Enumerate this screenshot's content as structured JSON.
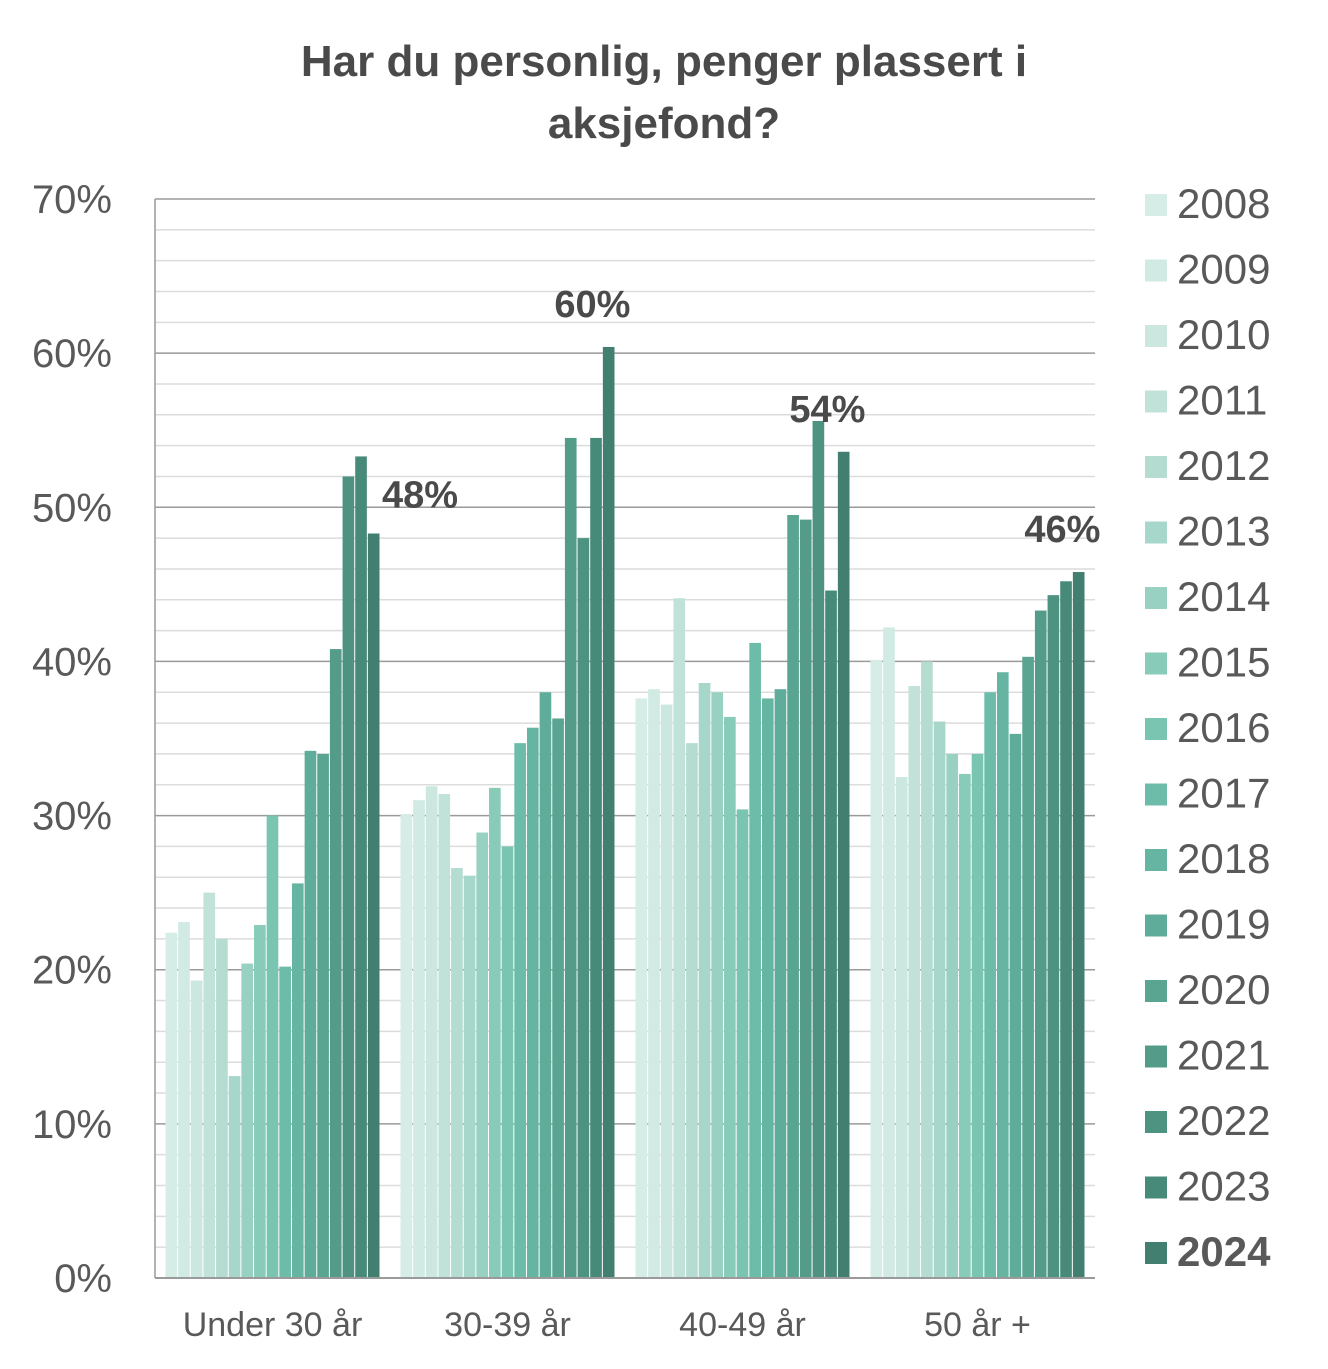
{
  "chart_data": {
    "type": "bar",
    "title_line1": "Har du personlig, penger plassert i",
    "title_line2": "aksjefond?",
    "xlabel": "",
    "ylabel": "",
    "ylim": [
      0,
      70
    ],
    "y_ticks": [
      0,
      10,
      20,
      30,
      40,
      50,
      60,
      70
    ],
    "y_tick_labels": [
      "0%",
      "10%",
      "20%",
      "30%",
      "40%",
      "50%",
      "60%",
      "70%"
    ],
    "grid": true,
    "legend_position": "right",
    "categories": [
      "Under 30 år",
      "30-39 år",
      "40-49 år",
      "50 år +"
    ],
    "series": [
      {
        "name": "2008",
        "color": "#d6ece6",
        "values": [
          22.4,
          30.1,
          37.6,
          40.1
        ]
      },
      {
        "name": "2009",
        "color": "#d1eae3",
        "values": [
          23.1,
          31.0,
          38.2,
          42.2
        ]
      },
      {
        "name": "2010",
        "color": "#cce7e0",
        "values": [
          19.3,
          31.9,
          37.2,
          32.5
        ]
      },
      {
        "name": "2011",
        "color": "#c0e2d9",
        "values": [
          25.0,
          31.4,
          44.1,
          38.4
        ]
      },
      {
        "name": "2012",
        "color": "#b4dcd1",
        "values": [
          22.0,
          26.6,
          34.7,
          40.0
        ]
      },
      {
        "name": "2013",
        "color": "#a6d7ca",
        "values": [
          13.1,
          26.1,
          38.6,
          36.1
        ]
      },
      {
        "name": "2014",
        "color": "#98d1c1",
        "values": [
          20.4,
          28.9,
          38.0,
          34.0
        ]
      },
      {
        "name": "2015",
        "color": "#88cbb9",
        "values": [
          22.9,
          31.8,
          36.4,
          32.7
        ]
      },
      {
        "name": "2016",
        "color": "#79c5b1",
        "values": [
          30.0,
          28.0,
          30.4,
          34.0
        ]
      },
      {
        "name": "2017",
        "color": "#6dbca9",
        "values": [
          20.2,
          34.7,
          41.2,
          38.0
        ]
      },
      {
        "name": "2018",
        "color": "#66b5a2",
        "values": [
          25.6,
          35.7,
          37.6,
          39.3
        ]
      },
      {
        "name": "2019",
        "color": "#60ac9a",
        "values": [
          34.2,
          38.0,
          38.2,
          35.3
        ]
      },
      {
        "name": "2020",
        "color": "#5aa592",
        "values": [
          34.0,
          36.3,
          49.5,
          40.3
        ]
      },
      {
        "name": "2021",
        "color": "#549b89",
        "values": [
          40.8,
          54.5,
          49.2,
          43.3
        ]
      },
      {
        "name": "2022",
        "color": "#4e9382",
        "values": [
          52.0,
          48.0,
          55.6,
          44.3
        ]
      },
      {
        "name": "2023",
        "color": "#488a7a",
        "values": [
          53.3,
          54.5,
          44.6,
          45.2
        ]
      },
      {
        "name": "2024",
        "color": "#427f70",
        "values": [
          48.3,
          60.4,
          53.6,
          45.8
        ]
      }
    ],
    "data_labels": [
      {
        "category": "Under 30 år",
        "series": "2024",
        "text": "48%"
      },
      {
        "category": "30-39 år",
        "series": "2024",
        "text": "60%"
      },
      {
        "category": "40-49 år",
        "series": "2024",
        "text": "54%"
      },
      {
        "category": "50 år +",
        "series": "2024",
        "text": "46%"
      }
    ],
    "highlight_series": "2024"
  }
}
